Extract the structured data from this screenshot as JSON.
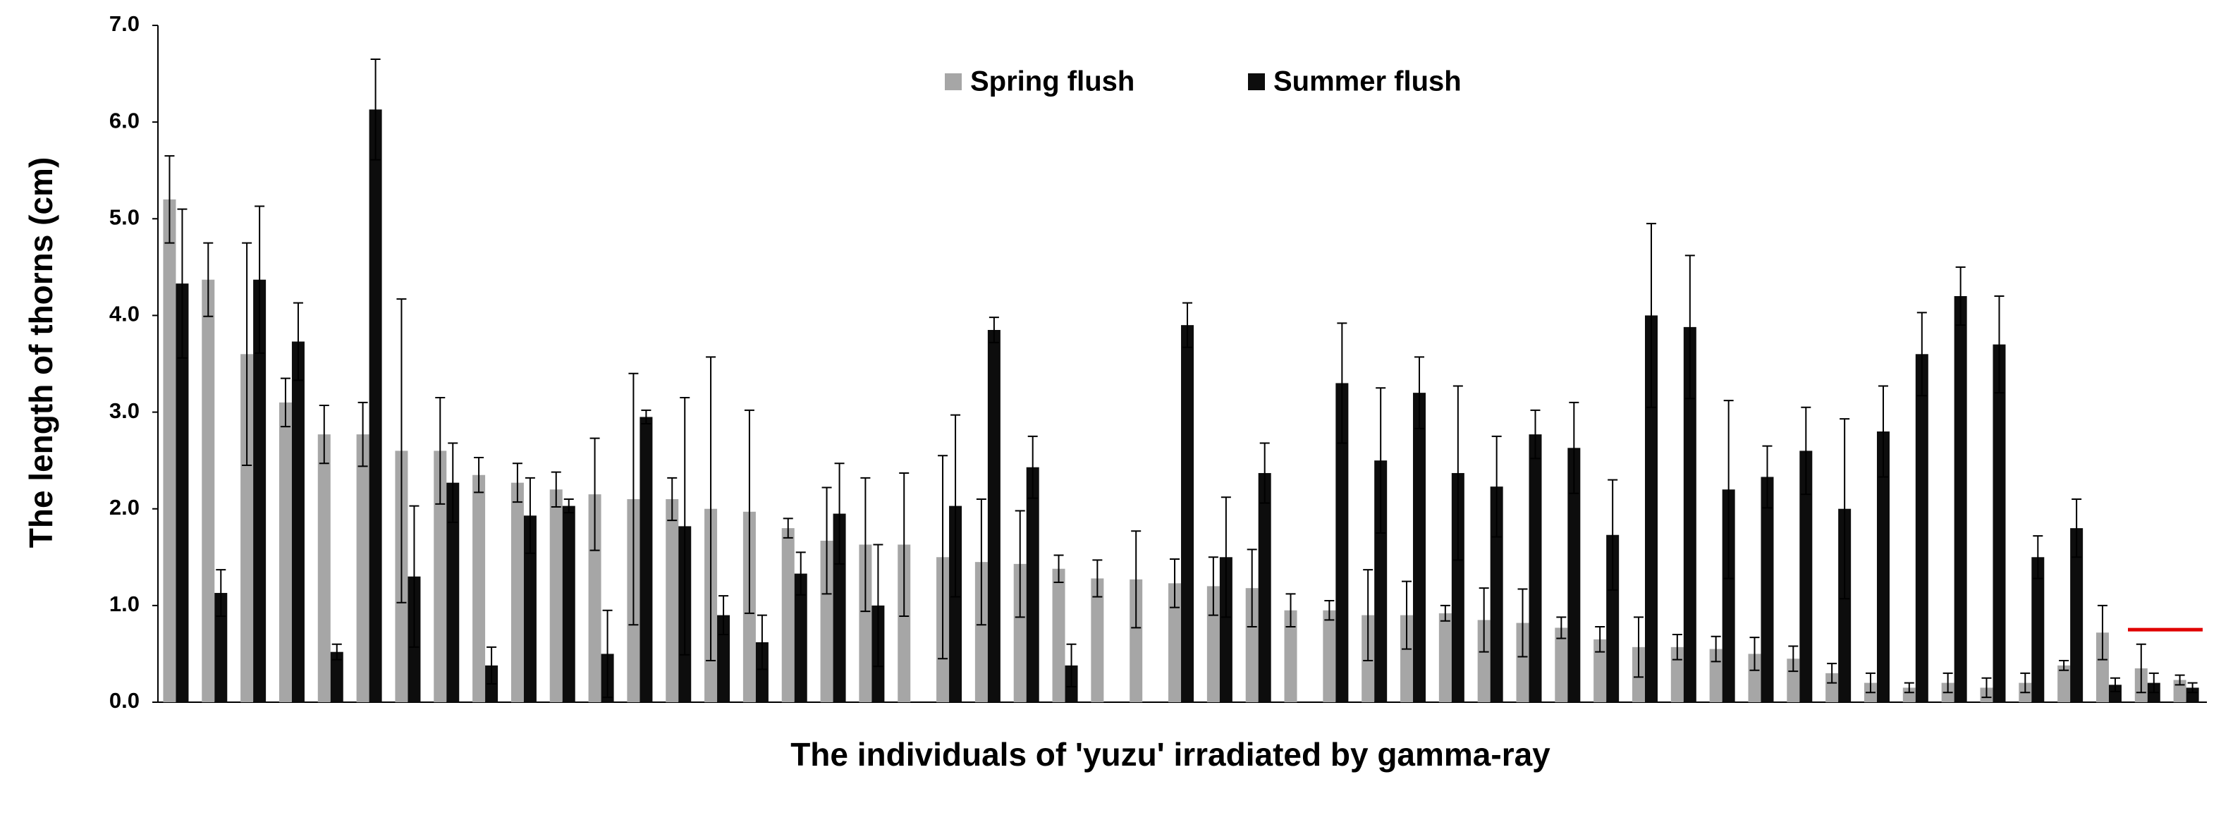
{
  "chart_data": {
    "type": "bar",
    "y_label": "The length of thorns (cm)",
    "x_label": "The individuals of 'yuzu' irradiated by gamma-ray",
    "categories": [
      null,
      null,
      null,
      null,
      null,
      null,
      null,
      null,
      null,
      null,
      null,
      null,
      null,
      null,
      null,
      null,
      null,
      null,
      null,
      null,
      null,
      null,
      null,
      null,
      null,
      null,
      null,
      null,
      null,
      null,
      null,
      null,
      null,
      null,
      null,
      null,
      null,
      null,
      null,
      null,
      null,
      null,
      null,
      null,
      null,
      null,
      null,
      null,
      null,
      null,
      null,
      null,
      null
    ],
    "series": [
      {
        "name": "Spring flush",
        "color": "#a6a6a6",
        "values": [
          5.2,
          4.37,
          3.6,
          3.1,
          2.77,
          2.77,
          2.6,
          2.6,
          2.35,
          2.27,
          2.2,
          2.15,
          2.1,
          2.1,
          2.0,
          1.97,
          1.8,
          1.67,
          1.63,
          1.63,
          1.5,
          1.45,
          1.43,
          1.38,
          1.28,
          1.27,
          1.23,
          1.2,
          1.18,
          0.95,
          0.95,
          0.9,
          0.9,
          0.92,
          0.85,
          0.82,
          0.77,
          0.65,
          0.57,
          0.57,
          0.55,
          0.5,
          0.45,
          0.3,
          0.2,
          0.15,
          0.2,
          0.15,
          0.2,
          0.38,
          0.72,
          0.35,
          0.23
        ],
        "errors": [
          0.45,
          0.38,
          1.15,
          0.25,
          0.3,
          0.33,
          1.57,
          0.55,
          0.18,
          0.2,
          0.18,
          0.58,
          1.3,
          0.22,
          1.57,
          1.05,
          0.1,
          0.55,
          0.69,
          0.74,
          1.05,
          0.65,
          0.55,
          0.14,
          0.19,
          0.5,
          0.25,
          0.3,
          0.4,
          0.17,
          0.1,
          0.47,
          0.35,
          0.08,
          0.33,
          0.35,
          0.11,
          0.13,
          0.31,
          0.13,
          0.13,
          0.17,
          0.13,
          0.1,
          0.1,
          0.05,
          0.1,
          0.1,
          0.1,
          0.05,
          0.28,
          0.25,
          0.05
        ]
      },
      {
        "name": "Summer flush",
        "color": "#0d0d0d",
        "values": [
          4.33,
          1.13,
          4.37,
          3.73,
          0.52,
          6.13,
          1.3,
          2.27,
          0.38,
          1.93,
          2.03,
          0.5,
          2.95,
          1.82,
          0.9,
          0.62,
          1.33,
          1.95,
          1.0,
          null,
          2.03,
          3.85,
          2.43,
          0.38,
          null,
          null,
          3.9,
          1.5,
          2.37,
          null,
          3.3,
          2.5,
          3.2,
          2.37,
          2.23,
          2.77,
          2.63,
          1.73,
          4.0,
          3.88,
          2.2,
          2.33,
          2.6,
          2.0,
          2.8,
          3.6,
          4.2,
          3.7,
          1.5,
          1.8,
          0.18,
          0.2,
          0.15
        ],
        "errors": [
          0.77,
          0.24,
          0.76,
          0.4,
          0.08,
          0.52,
          0.73,
          0.41,
          0.19,
          0.39,
          0.07,
          0.45,
          0.07,
          1.33,
          0.2,
          0.28,
          0.22,
          0.52,
          0.63,
          null,
          0.94,
          0.13,
          0.32,
          0.22,
          null,
          null,
          0.23,
          0.62,
          0.31,
          null,
          0.62,
          0.75,
          0.37,
          0.9,
          0.52,
          0.25,
          0.47,
          0.57,
          0.95,
          0.74,
          0.92,
          0.32,
          0.45,
          0.93,
          0.47,
          0.43,
          0.3,
          0.5,
          0.22,
          0.3,
          0.07,
          0.1,
          0.05
        ]
      }
    ],
    "reference_line": {
      "value": 0.75,
      "color": "#e00000"
    },
    "ylim": [
      0,
      7
    ],
    "yticks": [
      {
        "value": 0,
        "label": "0.0"
      },
      {
        "value": 1,
        "label": "1.0"
      },
      {
        "value": 2,
        "label": "2.0"
      },
      {
        "value": 3,
        "label": "3.0"
      },
      {
        "value": 4,
        "label": "4.0"
      },
      {
        "value": 5,
        "label": "5.0"
      },
      {
        "value": 6,
        "label": "6.0"
      },
      {
        "value": 7,
        "label": "7.0"
      }
    ],
    "grid": false
  }
}
